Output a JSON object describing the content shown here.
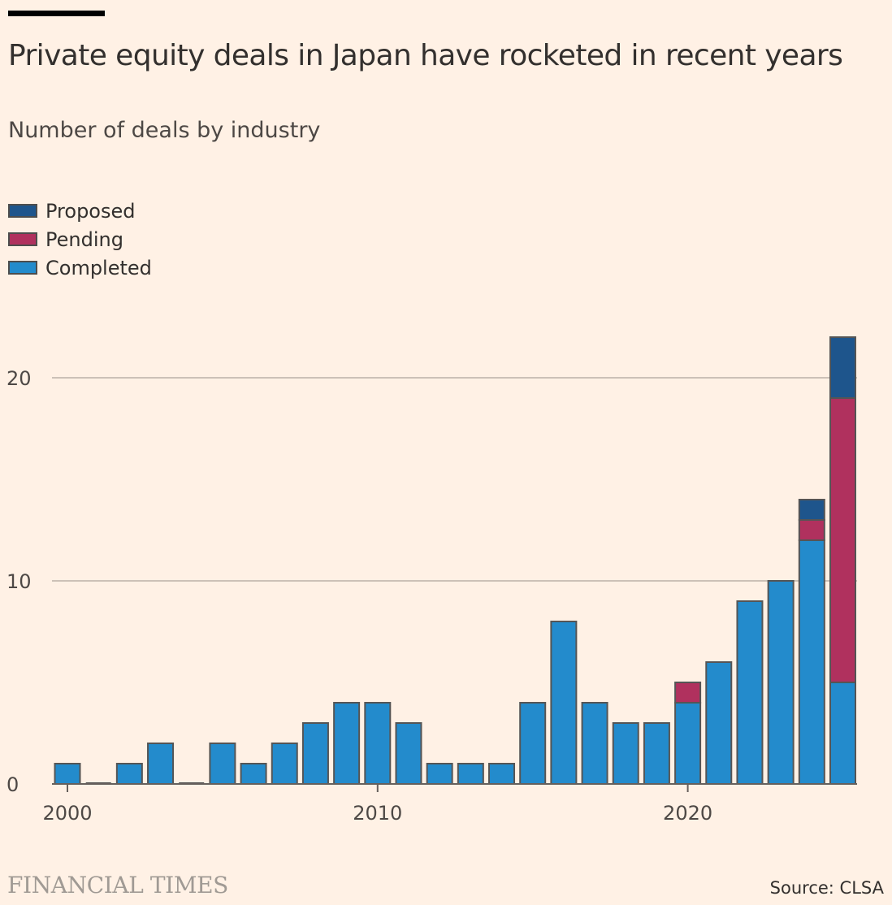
{
  "header": {
    "title": "Private equity deals in Japan have rocketed in recent years",
    "subtitle": "Number of deals by industry"
  },
  "legend": [
    {
      "label": "Proposed",
      "color": "#1e558c"
    },
    {
      "label": "Pending",
      "color": "#b0315e"
    },
    {
      "label": "Completed",
      "color": "#238bcc"
    }
  ],
  "chart_data": {
    "type": "bar",
    "stacked": true,
    "title": "Private equity deals in Japan have rocketed in recent years",
    "subtitle": "Number of deals by industry",
    "xlabel": "",
    "ylabel": "",
    "x": [
      2000,
      2001,
      2002,
      2003,
      2004,
      2005,
      2006,
      2007,
      2008,
      2009,
      2010,
      2011,
      2012,
      2013,
      2014,
      2015,
      2016,
      2017,
      2018,
      2019,
      2020,
      2021,
      2022,
      2023,
      2024,
      2025
    ],
    "series": [
      {
        "name": "Completed",
        "color": "#238bcc",
        "values": [
          1,
          0,
          1,
          2,
          0,
          2,
          1,
          2,
          3,
          4,
          4,
          3,
          1,
          1,
          1,
          4,
          8,
          4,
          3,
          3,
          4,
          6,
          9,
          10,
          12,
          5
        ]
      },
      {
        "name": "Pending",
        "color": "#b0315e",
        "values": [
          0,
          0,
          0,
          0,
          0,
          0,
          0,
          0,
          0,
          0,
          0,
          0,
          0,
          0,
          0,
          0,
          0,
          0,
          0,
          0,
          1,
          0,
          0,
          0,
          1,
          14
        ]
      },
      {
        "name": "Proposed",
        "color": "#1e558c",
        "values": [
          0,
          0,
          0,
          0,
          0,
          0,
          0,
          0,
          0,
          0,
          0,
          0,
          0,
          0,
          0,
          0,
          0,
          0,
          0,
          0,
          0,
          0,
          0,
          0,
          1,
          3
        ]
      }
    ],
    "ylim": [
      0,
      22
    ],
    "yticks": [
      {
        "value": 0,
        "label": "0"
      },
      {
        "value": 10,
        "label": "10"
      },
      {
        "value": 20,
        "label": "20"
      }
    ],
    "xticks": [
      {
        "value": 2000,
        "label": "2000"
      },
      {
        "value": 2010,
        "label": "2010"
      },
      {
        "value": 2020,
        "label": "2020"
      }
    ],
    "grid": true,
    "legend_position": "top-left"
  },
  "footer": {
    "brand": "FINANCIAL TIMES",
    "source": "Source: CLSA"
  }
}
